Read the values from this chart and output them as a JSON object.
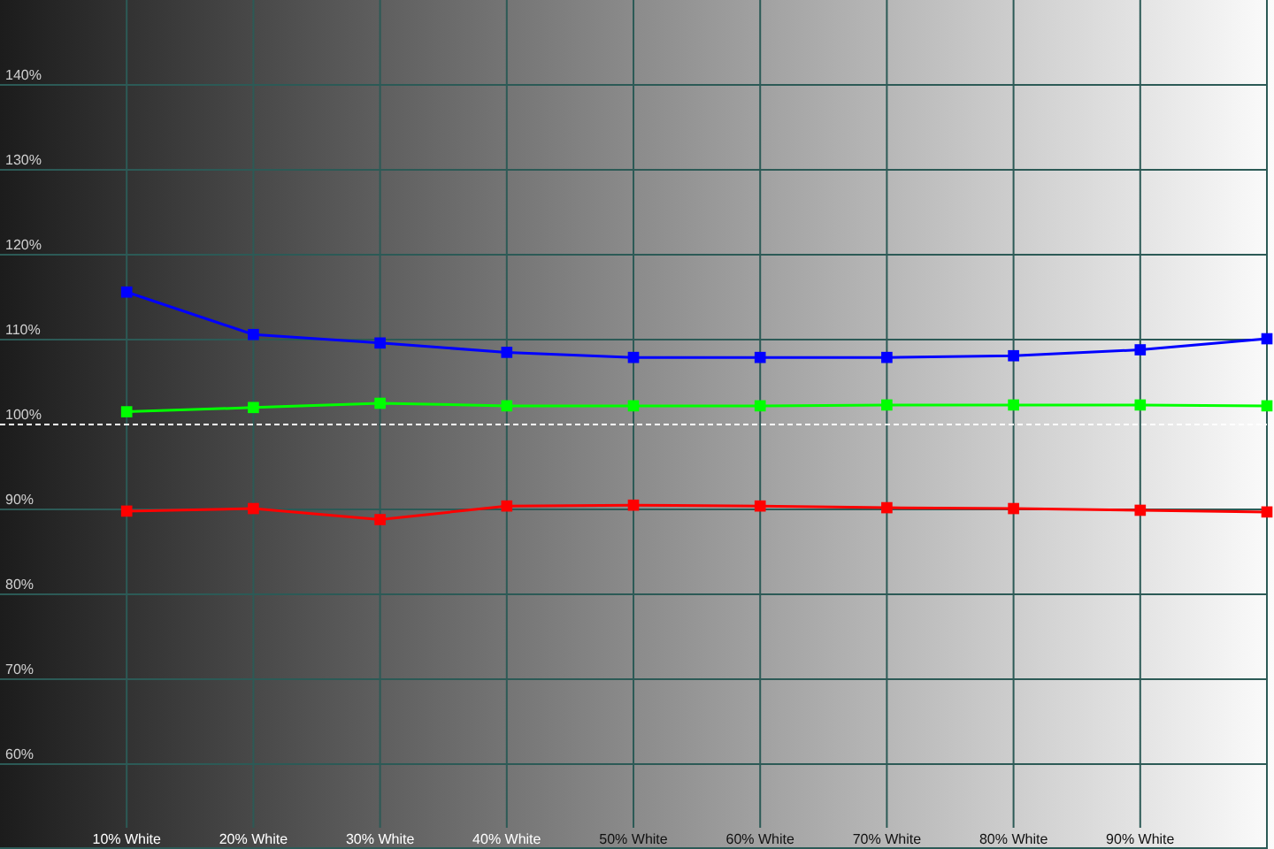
{
  "chart_data": {
    "type": "line",
    "x": [
      10,
      20,
      30,
      40,
      50,
      60,
      70,
      80,
      90,
      100
    ],
    "series": [
      {
        "color": "#0000ff",
        "values": [
          115.6,
          110.6,
          109.6,
          108.5,
          107.9,
          107.9,
          107.9,
          108.1,
          108.8,
          110.1
        ]
      },
      {
        "color": "#00ff00",
        "values": [
          101.5,
          102.0,
          102.5,
          102.2,
          102.2,
          102.2,
          102.3,
          102.3,
          102.3,
          102.2
        ]
      },
      {
        "color": "#ff0000",
        "values": [
          89.8,
          90.1,
          88.8,
          90.4,
          90.5,
          90.4,
          90.2,
          90.1,
          89.9,
          89.7
        ]
      }
    ],
    "xlim": [
      0,
      100
    ],
    "ylim": [
      50,
      150
    ],
    "xticks": [
      {
        "value": 10,
        "label": "10% White"
      },
      {
        "value": 20,
        "label": "20% White"
      },
      {
        "value": 30,
        "label": "30% White"
      },
      {
        "value": 40,
        "label": "40% White"
      },
      {
        "value": 50,
        "label": "50% White"
      },
      {
        "value": 60,
        "label": "60% White"
      },
      {
        "value": 70,
        "label": "70% White"
      },
      {
        "value": 80,
        "label": "80% White"
      },
      {
        "value": 90,
        "label": "90% White"
      }
    ],
    "yticks": [
      {
        "value": 60,
        "label": "60%"
      },
      {
        "value": 70,
        "label": "70%"
      },
      {
        "value": 80,
        "label": "80%"
      },
      {
        "value": 90,
        "label": "90%"
      },
      {
        "value": 100,
        "label": "100%"
      },
      {
        "value": 110,
        "label": "110%"
      },
      {
        "value": 120,
        "label": "120%"
      },
      {
        "value": 130,
        "label": "130%"
      },
      {
        "value": 140,
        "label": "140%"
      }
    ],
    "grid": true,
    "marker": "square",
    "line_style": "solid",
    "ref_lines": [
      {
        "axis": "y",
        "value": 100,
        "color": "#ffffff",
        "line_style": "dashed"
      }
    ]
  }
}
